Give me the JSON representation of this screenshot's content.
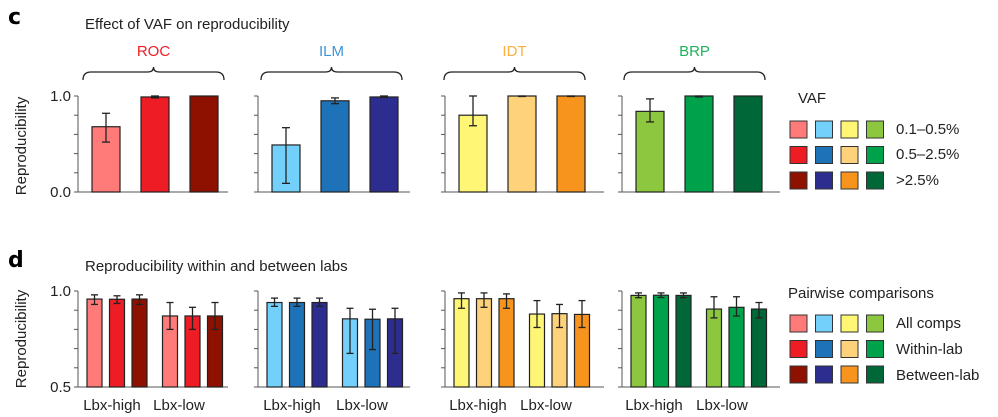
{
  "chart_data": [
    {
      "type": "bar",
      "panel_label": "c",
      "title": "Effect of VAF on reproducibility",
      "ylabel": "Reproducibility",
      "ylim": [
        0.0,
        1.0
      ],
      "yticks": [
        0.0,
        0.2,
        0.4,
        0.6,
        0.8,
        1.0
      ],
      "ytick_labels": [
        "0.0",
        "1.0"
      ],
      "groups": [
        {
          "name": "ROC",
          "color": "#ee1c25",
          "bars": [
            {
              "category": "0.1–0.5%",
              "value": 0.68,
              "err_low": 0.52,
              "err_high": 0.82,
              "color": "#ff7b79"
            },
            {
              "category": "0.5–2.5%",
              "value": 0.99,
              "err_low": 0.98,
              "err_high": 1.0,
              "color": "#ee1c25"
            },
            {
              "category": ">2.5%",
              "value": 1.0,
              "err_low": 1.0,
              "err_high": 1.0,
              "color": "#8e1100"
            }
          ]
        },
        {
          "name": "ILM",
          "color": "#3d95d6",
          "bars": [
            {
              "category": "0.1–0.5%",
              "value": 0.49,
              "err_low": 0.09,
              "err_high": 0.67,
              "color": "#73d0fb"
            },
            {
              "category": "0.5–2.5%",
              "value": 0.95,
              "err_low": 0.92,
              "err_high": 0.98,
              "color": "#1d72b8"
            },
            {
              "category": ">2.5%",
              "value": 0.99,
              "err_low": 0.985,
              "err_high": 1.0,
              "color": "#2c2d8f"
            }
          ]
        },
        {
          "name": "IDT",
          "color": "#fbb040",
          "bars": [
            {
              "category": "0.1–0.5%",
              "value": 0.8,
              "err_low": 0.69,
              "err_high": 1.0,
              "color": "#fef674"
            },
            {
              "category": "0.5–2.5%",
              "value": 1.0,
              "err_low": 0.995,
              "err_high": 1.0,
              "color": "#fdd27a"
            },
            {
              "category": ">2.5%",
              "value": 1.0,
              "err_low": 0.995,
              "err_high": 1.0,
              "color": "#f7941d"
            }
          ]
        },
        {
          "name": "BRP",
          "color": "#1fb25a",
          "bars": [
            {
              "category": "0.1–0.5%",
              "value": 0.84,
              "err_low": 0.73,
              "err_high": 0.97,
              "color": "#8dc63f"
            },
            {
              "category": "0.5–2.5%",
              "value": 1.0,
              "err_low": 0.99,
              "err_high": 1.0,
              "color": "#00a14b"
            },
            {
              "category": ">2.5%",
              "value": 1.0,
              "err_low": 1.0,
              "err_high": 1.0,
              "color": "#006838"
            }
          ]
        }
      ],
      "legend": {
        "title": "VAF",
        "placement": "right",
        "rows": [
          {
            "label": "0.1–0.5%",
            "colors": [
              "#ff7b79",
              "#73d0fb",
              "#fef674",
              "#8dc63f"
            ]
          },
          {
            "label": "0.5–2.5%",
            "colors": [
              "#ee1c25",
              "#1d72b8",
              "#fdd27a",
              "#00a14b"
            ]
          },
          {
            "label": ">2.5%",
            "colors": [
              "#8e1100",
              "#2c2d8f",
              "#f7941d",
              "#006838"
            ]
          }
        ]
      }
    },
    {
      "type": "bar",
      "panel_label": "d",
      "title": "Reproducibility within and between labs",
      "ylabel": "Reproducibility",
      "ylim": [
        0.5,
        1.0
      ],
      "yticks": [
        0.5,
        0.6,
        0.7,
        0.8,
        0.9,
        1.0
      ],
      "ytick_labels": [
        "0.5",
        "1.0"
      ],
      "xgroup_labels": [
        "Lbx-high",
        "Lbx-low"
      ],
      "groups": [
        {
          "name": "ROC",
          "bars": [
            {
              "subgroup": "Lbx-high",
              "category": "All comps",
              "value": 0.958,
              "err_low": 0.93,
              "err_high": 0.98,
              "color": "#ff7b79"
            },
            {
              "subgroup": "Lbx-high",
              "category": "Within-lab",
              "value": 0.957,
              "err_low": 0.935,
              "err_high": 0.975,
              "color": "#ee1c25"
            },
            {
              "subgroup": "Lbx-high",
              "category": "Between-lab",
              "value": 0.958,
              "err_low": 0.93,
              "err_high": 0.98,
              "color": "#8e1100"
            },
            {
              "subgroup": "Lbx-low",
              "category": "All comps",
              "value": 0.87,
              "err_low": 0.8,
              "err_high": 0.94,
              "color": "#ff7b79"
            },
            {
              "subgroup": "Lbx-low",
              "category": "Within-lab",
              "value": 0.87,
              "err_low": 0.8,
              "err_high": 0.915,
              "color": "#ee1c25"
            },
            {
              "subgroup": "Lbx-low",
              "category": "Between-lab",
              "value": 0.87,
              "err_low": 0.8,
              "err_high": 0.94,
              "color": "#8e1100"
            }
          ]
        },
        {
          "name": "ILM",
          "bars": [
            {
              "subgroup": "Lbx-high",
              "category": "All comps",
              "value": 0.94,
              "err_low": 0.92,
              "err_high": 0.963,
              "color": "#73d0fb"
            },
            {
              "subgroup": "Lbx-high",
              "category": "Within-lab",
              "value": 0.94,
              "err_low": 0.92,
              "err_high": 0.963,
              "color": "#1d72b8"
            },
            {
              "subgroup": "Lbx-high",
              "category": "Between-lab",
              "value": 0.94,
              "err_low": 0.92,
              "err_high": 0.963,
              "color": "#2c2d8f"
            },
            {
              "subgroup": "Lbx-low",
              "category": "All comps",
              "value": 0.855,
              "err_low": 0.675,
              "err_high": 0.91,
              "color": "#73d0fb"
            },
            {
              "subgroup": "Lbx-low",
              "category": "Within-lab",
              "value": 0.853,
              "err_low": 0.695,
              "err_high": 0.905,
              "color": "#1d72b8"
            },
            {
              "subgroup": "Lbx-low",
              "category": "Between-lab",
              "value": 0.855,
              "err_low": 0.675,
              "err_high": 0.91,
              "color": "#2c2d8f"
            }
          ]
        },
        {
          "name": "IDT",
          "bars": [
            {
              "subgroup": "Lbx-high",
              "category": "All comps",
              "value": 0.96,
              "err_low": 0.91,
              "err_high": 0.99,
              "color": "#fef674"
            },
            {
              "subgroup": "Lbx-high",
              "category": "Within-lab",
              "value": 0.96,
              "err_low": 0.915,
              "err_high": 0.99,
              "color": "#fdd27a"
            },
            {
              "subgroup": "Lbx-high",
              "category": "Between-lab",
              "value": 0.96,
              "err_low": 0.91,
              "err_high": 0.985,
              "color": "#f7941d"
            },
            {
              "subgroup": "Lbx-low",
              "category": "All comps",
              "value": 0.88,
              "err_low": 0.81,
              "err_high": 0.95,
              "color": "#fef674"
            },
            {
              "subgroup": "Lbx-low",
              "category": "Within-lab",
              "value": 0.882,
              "err_low": 0.81,
              "err_high": 0.93,
              "color": "#fdd27a"
            },
            {
              "subgroup": "Lbx-low",
              "category": "Between-lab",
              "value": 0.878,
              "err_low": 0.81,
              "err_high": 0.95,
              "color": "#f7941d"
            }
          ]
        },
        {
          "name": "BRP",
          "bars": [
            {
              "subgroup": "Lbx-high",
              "category": "All comps",
              "value": 0.977,
              "err_low": 0.965,
              "err_high": 0.99,
              "color": "#8dc63f"
            },
            {
              "subgroup": "Lbx-high",
              "category": "Within-lab",
              "value": 0.978,
              "err_low": 0.966,
              "err_high": 0.99,
              "color": "#00a14b"
            },
            {
              "subgroup": "Lbx-high",
              "category": "Between-lab",
              "value": 0.977,
              "err_low": 0.965,
              "err_high": 0.99,
              "color": "#006838"
            },
            {
              "subgroup": "Lbx-low",
              "category": "All comps",
              "value": 0.906,
              "err_low": 0.86,
              "err_high": 0.97,
              "color": "#8dc63f"
            },
            {
              "subgroup": "Lbx-low",
              "category": "Within-lab",
              "value": 0.915,
              "err_low": 0.87,
              "err_high": 0.97,
              "color": "#00a14b"
            },
            {
              "subgroup": "Lbx-low",
              "category": "Between-lab",
              "value": 0.906,
              "err_low": 0.86,
              "err_high": 0.94,
              "color": "#006838"
            }
          ]
        }
      ],
      "legend": {
        "title": "Pairwise comparisons",
        "placement": "right",
        "rows": [
          {
            "label": "All comps",
            "colors": [
              "#ff7b79",
              "#73d0fb",
              "#fef674",
              "#8dc63f"
            ]
          },
          {
            "label": "Within-lab",
            "colors": [
              "#ee1c25",
              "#1d72b8",
              "#fdd27a",
              "#00a14b"
            ]
          },
          {
            "label": "Between-lab",
            "colors": [
              "#8e1100",
              "#2c2d8f",
              "#f7941d",
              "#006838"
            ]
          }
        ]
      }
    }
  ]
}
